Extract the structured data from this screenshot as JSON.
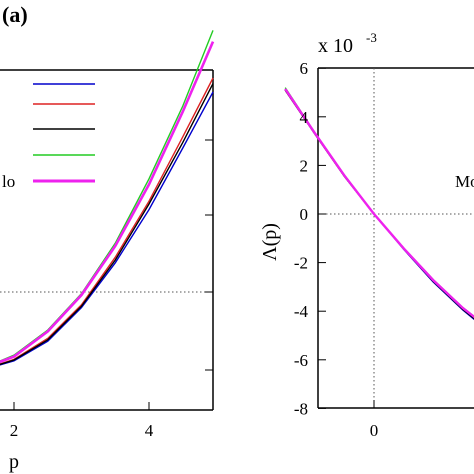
{
  "panel_label": "(a)",
  "exponent_label": "x 10",
  "exponent_power": "-3",
  "chart_data": [
    {
      "type": "line",
      "title": "",
      "xlabel": "p",
      "ylabel": "",
      "xlim": [
        1,
        5
      ],
      "x_ticks": [
        "2",
        "4"
      ],
      "grid": false,
      "reference_lines": {
        "horizontal_dotted_fraction_of_height": 0.73
      },
      "legend": {
        "placement": "top-right",
        "entries": [
          {
            "label": "",
            "color": "#0000cc"
          },
          {
            "label": "",
            "color": "#dd2222"
          },
          {
            "label": "",
            "color": "#000000"
          },
          {
            "label": "",
            "color": "#22cc22"
          },
          {
            "label": "lo",
            "color": "#ee22ee"
          }
        ]
      },
      "series": [
        {
          "color": "#0000cc",
          "x": [
            1.0,
            1.5,
            2.0,
            2.5,
            3.0,
            3.5,
            4.0,
            4.5,
            5.0
          ],
          "y": [
            0.0,
            0.005,
            0.04,
            0.11,
            0.23,
            0.39,
            0.58,
            0.8,
            1.0
          ]
        },
        {
          "color": "#dd2222",
          "x": [
            1.0,
            1.5,
            2.0,
            2.5,
            3.0,
            3.5,
            4.0,
            4.5,
            5.0
          ],
          "y": [
            0.0,
            0.005,
            0.045,
            0.12,
            0.24,
            0.41,
            0.61,
            0.84,
            1.05
          ]
        },
        {
          "color": "#000000",
          "x": [
            1.0,
            1.5,
            2.0,
            2.5,
            3.0,
            3.5,
            4.0,
            4.5,
            5.0
          ],
          "y": [
            0.0,
            0.005,
            0.043,
            0.115,
            0.235,
            0.4,
            0.6,
            0.82,
            1.03
          ]
        },
        {
          "color": "#22cc22",
          "x": [
            1.0,
            1.5,
            2.0,
            2.5,
            3.0,
            3.5,
            4.0,
            4.5,
            5.0
          ],
          "y": [
            0.0,
            0.01,
            0.06,
            0.15,
            0.28,
            0.46,
            0.69,
            0.95,
            1.22
          ]
        },
        {
          "color": "#ee22ee",
          "x": [
            1.0,
            1.5,
            2.0,
            2.5,
            3.0,
            3.5,
            4.0,
            4.5,
            5.0
          ],
          "y": [
            0.0,
            0.01,
            0.055,
            0.145,
            0.275,
            0.45,
            0.67,
            0.93,
            1.18
          ]
        }
      ]
    },
    {
      "type": "line",
      "title": "",
      "xlabel": "",
      "ylabel": "Λ(p)",
      "ylim": [
        -8,
        6
      ],
      "xlim": [
        -0.6,
        1.6
      ],
      "x_ticks": [
        "0"
      ],
      "y_ticks": [
        "6",
        "4",
        "2",
        "0",
        "-2",
        "-4",
        "-6",
        "-8"
      ],
      "grid": false,
      "reference_lines": {
        "vertical_dotted_x": 0,
        "horizontal_dotted_y": 0
      },
      "annotation": "Mo",
      "series": [
        {
          "color": "#0000cc",
          "x": [
            -0.6,
            -0.4,
            -0.2,
            0.0,
            0.2,
            0.4,
            0.6,
            0.8,
            1.0,
            1.2
          ],
          "y": [
            5.1,
            3.3,
            1.55,
            0.0,
            -1.45,
            -2.8,
            -3.95,
            -4.95,
            -5.8,
            -6.4
          ]
        },
        {
          "color": "#dd2222",
          "x": [
            -0.6,
            -0.4,
            -0.2,
            0.0,
            0.2,
            0.4,
            0.6,
            0.8,
            1.0,
            1.2
          ],
          "y": [
            5.1,
            3.3,
            1.55,
            0.0,
            -1.42,
            -2.75,
            -3.9,
            -4.85,
            -5.65,
            -6.25
          ]
        },
        {
          "color": "#000000",
          "x": [
            -0.6,
            -0.4,
            -0.2,
            0.0,
            0.2,
            0.4,
            0.6,
            0.8,
            1.0,
            1.2
          ],
          "y": [
            5.1,
            3.3,
            1.55,
            0.0,
            -1.43,
            -2.77,
            -3.92,
            -4.9,
            -5.7,
            -6.3
          ]
        },
        {
          "color": "#22cc22",
          "x": [
            -0.6,
            -0.4,
            -0.2,
            0.0,
            0.2,
            0.4,
            0.6,
            0.8,
            1.0,
            1.2
          ],
          "y": [
            5.2,
            3.35,
            1.6,
            0.0,
            -1.4,
            -2.7,
            -3.85,
            -4.8,
            -5.55,
            -6.1
          ]
        },
        {
          "color": "#ee22ee",
          "x": [
            -0.6,
            -0.4,
            -0.2,
            0.0,
            0.2,
            0.4,
            0.6,
            0.8,
            1.0,
            1.2
          ],
          "y": [
            5.15,
            3.33,
            1.58,
            0.0,
            -1.41,
            -2.72,
            -3.87,
            -4.82,
            -5.6,
            -6.15
          ]
        }
      ]
    }
  ]
}
